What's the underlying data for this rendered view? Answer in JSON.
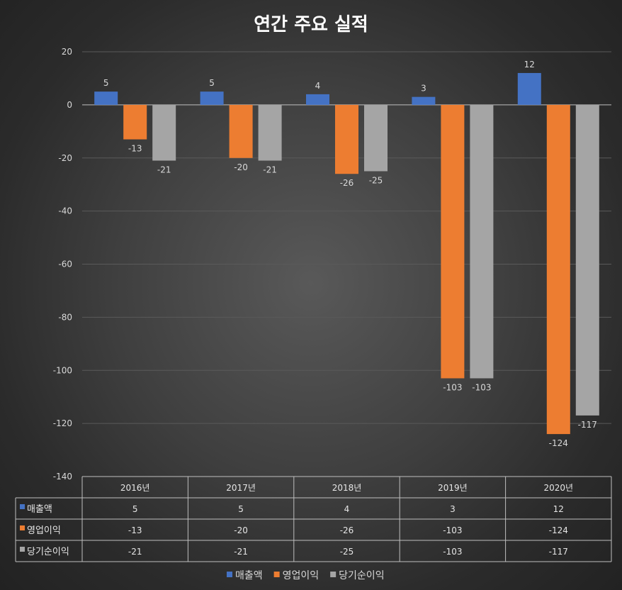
{
  "chart_data": {
    "type": "bar",
    "title": "연간 주요 실적",
    "categories": [
      "2016년",
      "2017년",
      "2018년",
      "2019년",
      "2020년"
    ],
    "series": [
      {
        "name": "매출액",
        "values": [
          5,
          5,
          4,
          3,
          12
        ],
        "color": "#4472c4"
      },
      {
        "name": "영업이익",
        "values": [
          -13,
          -20,
          -26,
          -103,
          -124
        ],
        "color": "#ed7d31"
      },
      {
        "name": "당기순이익",
        "values": [
          -21,
          -21,
          -25,
          -103,
          -117
        ],
        "color": "#a5a5a5"
      }
    ],
    "ylim": [
      -140,
      20
    ],
    "yticks": [
      20,
      0,
      -20,
      -40,
      -60,
      -80,
      -100,
      -120,
      -140
    ],
    "grid": true,
    "legend": "bottom",
    "data_table": true
  }
}
